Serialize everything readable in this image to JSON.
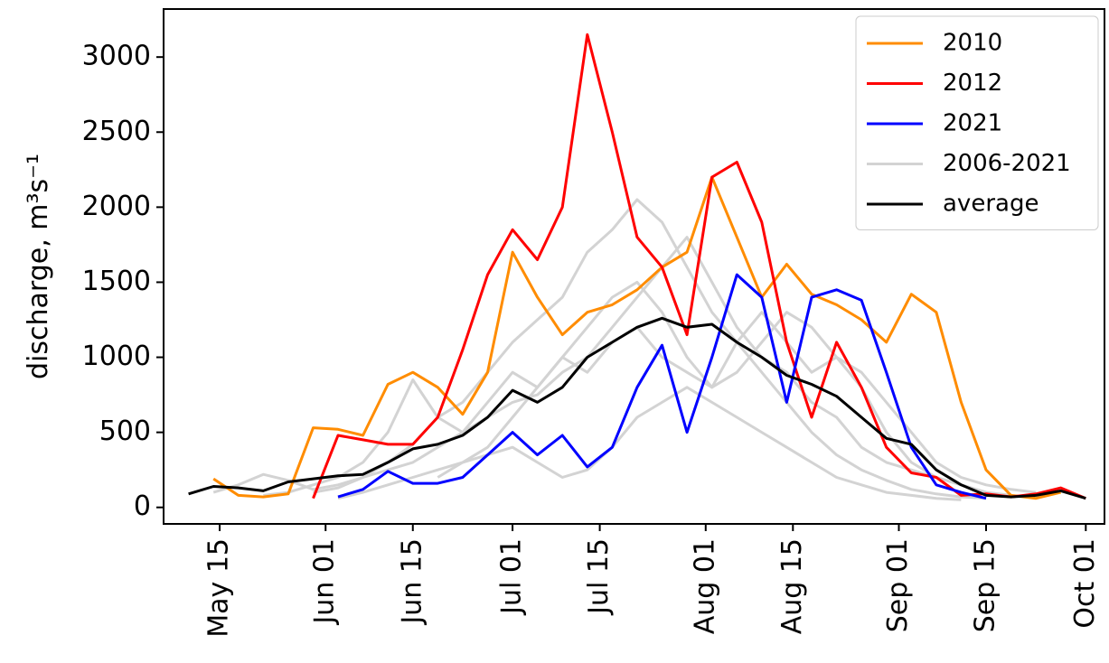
{
  "chart_data": {
    "type": "line",
    "ylabel": "discharge, m³s⁻¹",
    "x": [
      "05-10",
      "05-14",
      "05-18",
      "05-22",
      "05-26",
      "05-30",
      "06-03",
      "06-07",
      "06-11",
      "06-15",
      "06-19",
      "06-23",
      "06-27",
      "07-01",
      "07-05",
      "07-09",
      "07-13",
      "07-17",
      "07-21",
      "07-25",
      "07-29",
      "08-02",
      "08-06",
      "08-10",
      "08-14",
      "08-18",
      "08-22",
      "08-26",
      "08-30",
      "09-03",
      "09-07",
      "09-11",
      "09-15",
      "09-19",
      "09-23",
      "09-27",
      "10-01"
    ],
    "series": [
      {
        "name": "2010",
        "color": "#ff8c00",
        "values": [
          null,
          190,
          80,
          70,
          90,
          530,
          520,
          480,
          820,
          900,
          800,
          620,
          900,
          1700,
          1400,
          1150,
          1300,
          1350,
          1450,
          1600,
          1700,
          2200,
          1800,
          1400,
          1620,
          1420,
          1350,
          1250,
          1100,
          1420,
          1300,
          700,
          250,
          80,
          60,
          100,
          null
        ]
      },
      {
        "name": "2012",
        "color": "#ff0000",
        "values": [
          null,
          null,
          null,
          null,
          null,
          60,
          480,
          450,
          420,
          420,
          600,
          1050,
          1550,
          1850,
          1650,
          2000,
          3150,
          2500,
          1800,
          1600,
          1150,
          2200,
          2300,
          1900,
          1100,
          600,
          1100,
          800,
          400,
          230,
          200,
          80,
          90,
          70,
          90,
          130,
          60
        ]
      },
      {
        "name": "2021",
        "color": "#0000ff",
        "values": [
          null,
          null,
          null,
          null,
          null,
          null,
          70,
          120,
          240,
          160,
          160,
          200,
          350,
          500,
          350,
          480,
          270,
          400,
          800,
          1080,
          500,
          1000,
          1550,
          1400,
          700,
          1400,
          1450,
          1380,
          900,
          400,
          150,
          100,
          60,
          null,
          null,
          null,
          null
        ]
      },
      {
        "name": "2006-2021",
        "color": "#d3d3d3",
        "values": [
          null,
          100,
          150,
          220,
          180,
          120,
          150,
          200,
          300,
          420,
          600,
          700,
          900,
          1100,
          1250,
          1400,
          1700,
          1850,
          2050,
          1900,
          1600,
          1300,
          1100,
          900,
          700,
          500,
          350,
          250,
          180,
          120,
          90,
          70,
          60,
          null,
          null,
          null,
          null
        ]
      },
      {
        "name": "2006-2021",
        "color": "#d3d3d3",
        "values": [
          null,
          null,
          null,
          80,
          100,
          150,
          200,
          300,
          500,
          850,
          600,
          500,
          700,
          900,
          800,
          1000,
          1200,
          1400,
          1500,
          1300,
          1000,
          800,
          900,
          1100,
          1300,
          1200,
          1000,
          800,
          500,
          300,
          200,
          150,
          100,
          80,
          null,
          null,
          null
        ]
      },
      {
        "name": "2006-2021",
        "color": "#d3d3d3",
        "values": [
          null,
          null,
          null,
          null,
          null,
          100,
          130,
          200,
          250,
          300,
          400,
          500,
          600,
          700,
          750,
          900,
          1000,
          1200,
          1400,
          1600,
          1800,
          1500,
          1200,
          1000,
          900,
          700,
          600,
          400,
          300,
          250,
          200,
          150,
          100,
          null,
          null,
          null,
          null
        ]
      },
      {
        "name": "2006-2021",
        "color": "#d3d3d3",
        "values": [
          null,
          null,
          null,
          null,
          null,
          null,
          60,
          100,
          150,
          200,
          250,
          300,
          350,
          400,
          300,
          200,
          250,
          400,
          600,
          700,
          800,
          700,
          600,
          500,
          400,
          300,
          200,
          150,
          100,
          80,
          60,
          50,
          null,
          null,
          null,
          null,
          null
        ]
      },
      {
        "name": "2006-2021",
        "color": "#d3d3d3",
        "values": [
          null,
          null,
          null,
          null,
          null,
          null,
          null,
          null,
          null,
          null,
          200,
          300,
          400,
          600,
          800,
          1000,
          900,
          1100,
          1200,
          1000,
          900,
          800,
          1100,
          1300,
          1100,
          900,
          1000,
          900,
          700,
          500,
          300,
          200,
          150,
          120,
          100,
          null,
          null
        ]
      },
      {
        "name": "average",
        "color": "#000000",
        "values": [
          90,
          140,
          130,
          110,
          170,
          190,
          210,
          220,
          300,
          390,
          420,
          480,
          600,
          780,
          700,
          800,
          1000,
          1100,
          1200,
          1260,
          1200,
          1220,
          1100,
          1000,
          880,
          820,
          740,
          600,
          460,
          420,
          250,
          150,
          80,
          70,
          80,
          110,
          60
        ]
      }
    ],
    "xlim": [
      "05-06",
      "10-04"
    ],
    "xticks": [
      {
        "value": "05-15",
        "label": "May 15"
      },
      {
        "value": "06-01",
        "label": "Jun 01"
      },
      {
        "value": "06-15",
        "label": "Jun 15"
      },
      {
        "value": "07-01",
        "label": "Jul 01"
      },
      {
        "value": "07-15",
        "label": "Jul 15"
      },
      {
        "value": "08-01",
        "label": "Aug 01"
      },
      {
        "value": "08-15",
        "label": "Aug 15"
      },
      {
        "value": "09-01",
        "label": "Sep 01"
      },
      {
        "value": "09-15",
        "label": "Sep 15"
      },
      {
        "value": "10-01",
        "label": "Oct 01"
      }
    ],
    "ylim": [
      -110,
      3320
    ],
    "yticks": [
      0,
      500,
      1000,
      1500,
      2000,
      2500,
      3000
    ],
    "legend": "upper right"
  }
}
